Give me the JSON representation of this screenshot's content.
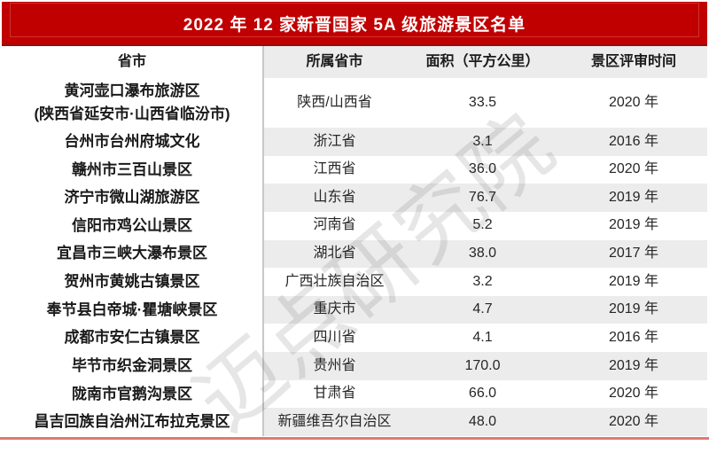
{
  "title": "2022 年 12 家新晋国家 5A 级旅游景区名单",
  "watermark": "迈点研究院",
  "colors": {
    "banner_red": "#c00000",
    "banner_edge": "#8e0f0f",
    "stripe_gray": "#ececec",
    "divider_gray": "#c8c8c8",
    "bottom_line_red": "#dd7b72",
    "text_dark": "#1a1a1a",
    "text_body": "#262626"
  },
  "table": {
    "columns": [
      "省市",
      "所属省市",
      "面积（平方公里）",
      "景区评审时间"
    ],
    "rows": [
      {
        "name": "黄河壶口瀑布旅游区",
        "name_line2": "(陕西省延安市·山西省临汾市)",
        "province": "陕西/山西省",
        "area": "33.5",
        "year": "2020 年"
      },
      {
        "name": "台州市台州府城文化",
        "province": "浙江省",
        "area": "3.1",
        "year": "2016 年"
      },
      {
        "name": "赣州市三百山景区",
        "province": "江西省",
        "area": "36.0",
        "year": "2020 年"
      },
      {
        "name": "济宁市微山湖旅游区",
        "province": "山东省",
        "area": "76.7",
        "year": "2019 年"
      },
      {
        "name": "信阳市鸡公山景区",
        "province": "河南省",
        "area": "5.2",
        "year": "2019 年"
      },
      {
        "name": "宜昌市三峡大瀑布景区",
        "province": "湖北省",
        "area": "38.0",
        "year": "2017 年"
      },
      {
        "name": "贺州市黄姚古镇景区",
        "province": "广西壮族自治区",
        "area": "3.2",
        "year": "2019 年"
      },
      {
        "name": "奉节县白帝城·瞿塘峡景区",
        "province": "重庆市",
        "area": "4.7",
        "year": "2019 年"
      },
      {
        "name": "成都市安仁古镇景区",
        "province": "四川省",
        "area": "4.1",
        "year": "2016 年"
      },
      {
        "name": "毕节市织金洞景区",
        "province": "贵州省",
        "area": "170.0",
        "year": "2019 年"
      },
      {
        "name": "陇南市官鹅沟景区",
        "province": "甘肃省",
        "area": "66.0",
        "year": "2020 年"
      },
      {
        "name": "昌吉回族自治州江布拉克景区",
        "province": "新疆维吾尔自治区",
        "area": "48.0",
        "year": "2020 年"
      }
    ]
  }
}
